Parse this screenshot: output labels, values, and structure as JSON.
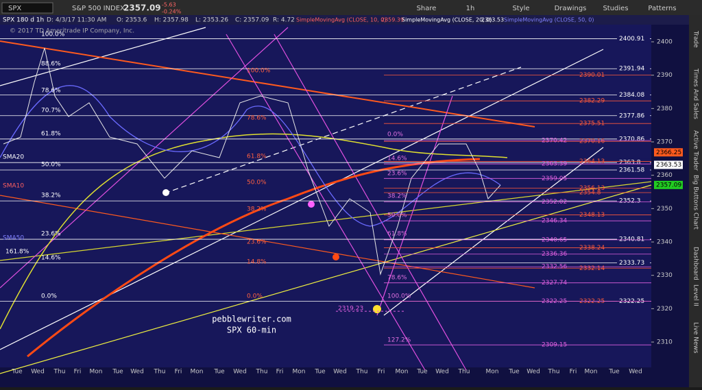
{
  "toolbar": {
    "symbol": "SPX",
    "name": "S&P 500 INDEX",
    "last": "2357.09",
    "change": "-5.63",
    "change_pct": "-0.24%",
    "buttons": [
      "Share",
      "1h",
      "Style",
      "Drawings",
      "Studies",
      "Patterns"
    ]
  },
  "header": {
    "chart": "SPX 180 d 1h",
    "date": "D: 4/3/17 11:30 AM",
    "open": "O: 2353.6",
    "high": "H: 2357.98",
    "low": "L: 2353.26",
    "close": "C: 2357.09",
    "range": "R: 4.72",
    "sma10": "SimpleMovingAvg (CLOSE, 10, 0)",
    "sma10_val": "2359.39",
    "sma20": "SimpleMovingAvg (CLOSE, 20, 0)",
    "sma20_val": "2363.53",
    "sma50": "SimpleMovingAvg (CLOSE, 50, 0)"
  },
  "copyright": "© 2017 TD Ameritrade IP Company, Inc.",
  "watermark": [
    "pebblewriter.com",
    "SPX 60-min"
  ],
  "sma_labels": [
    "SMA20",
    "SMA10",
    "SMA50"
  ],
  "price_axis": {
    "ticks": [
      2400,
      2390,
      2380,
      2370,
      2360,
      2350,
      2340,
      2330,
      2320,
      2310
    ]
  },
  "white_levels": [
    2400.91,
    2391.94,
    2384.08,
    2377.86,
    2370.86,
    2363.8,
    2361.58,
    2352.3,
    2340.81,
    2333.73,
    2322.25
  ],
  "red_levels": [
    2390.01,
    2382.29,
    2375.51,
    2370.16,
    2364.13,
    2356.13,
    2354.8,
    2348.13,
    2338.24,
    2332.14,
    2322.25
  ],
  "pink_levels": [
    2370.42,
    2363.39,
    2359.05,
    2352.02,
    2346.34,
    2340.65,
    2336.36,
    2332.56,
    2327.74,
    2322.25,
    2309.15
  ],
  "low_label": 2319.23,
  "tags": {
    "sma50": 2366.25,
    "sma20": 2363.53,
    "last": 2357.09
  },
  "fib_left": [
    "100.0%",
    "88.6%",
    "78.6%",
    "70.7%",
    "61.8%",
    "50.0%",
    "38.2%",
    "23.6%",
    "14.6%",
    "0.0%",
    "161.8%"
  ],
  "fib_mid": [
    "100.0%",
    "78.6%",
    "61.8%",
    "50.0%",
    "38.2%",
    "23.6%",
    "14.8%",
    "0.0%"
  ],
  "fib_right": [
    "0.0%",
    "14.6%",
    "23.6%",
    "38.2%",
    "50.0%",
    "61.8%",
    "78.6%",
    "100.0%",
    "127.2%"
  ],
  "days": [
    "Tue",
    "Wed",
    "Thu",
    "Fri",
    "Mon",
    "Tue",
    "Wed",
    "Thu",
    "Fri",
    "Mon",
    "Tue",
    "Wed",
    "Thu",
    "Fri",
    "Mon",
    "Tue",
    "Wed",
    "Thu",
    "Fri",
    "Mon",
    "Tue",
    "Wed",
    "Thu",
    "Mon",
    "Tue",
    "Wed",
    "Thu",
    "Fri",
    "Mon",
    "Tue",
    "Wed"
  ],
  "side_tabs": [
    "Trade",
    "Times And Sales",
    "Active Trader",
    "Big Buttons",
    "Chart",
    "Dashboard",
    "Level II",
    "Live News"
  ]
}
